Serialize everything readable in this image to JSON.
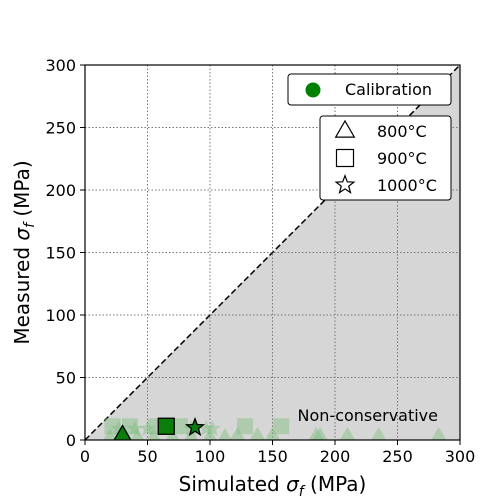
{
  "chart_data": {
    "type": "scatter",
    "xlabel": "Simulated",
    "ylabel": "Measured",
    "label_symbol": "σ",
    "label_subscript": "f",
    "label_unit": "(MPa)",
    "xlim": [
      0,
      300
    ],
    "ylim": [
      0,
      300
    ],
    "xticks": [
      0,
      50,
      100,
      150,
      200,
      250,
      300
    ],
    "yticks": [
      0,
      50,
      100,
      150,
      200,
      250,
      300
    ],
    "grid": true,
    "region_label": "Non-conservative",
    "region_color": "#d6d6d6",
    "diagonal": [
      [
        0,
        0
      ],
      [
        300,
        300
      ]
    ],
    "point_color": "#0a7d0a",
    "legend_calibration": {
      "label": "Calibration",
      "color": "#008000"
    },
    "legend_markers": [
      {
        "label": "800°C",
        "marker": "triangle"
      },
      {
        "label": "900°C",
        "marker": "square"
      },
      {
        "label": "1000°C",
        "marker": "star"
      }
    ],
    "series": [
      {
        "marker": "triangle",
        "faded": [
          [
            20,
            2
          ],
          [
            30,
            2
          ],
          [
            42,
            2
          ],
          [
            55,
            2
          ],
          [
            70,
            2
          ],
          [
            85,
            2
          ],
          [
            100,
            2
          ],
          [
            112,
            2
          ],
          [
            122,
            3
          ],
          [
            138,
            3
          ],
          [
            150,
            3
          ],
          [
            185,
            3
          ],
          [
            188,
            3
          ],
          [
            210,
            3
          ],
          [
            235,
            3
          ],
          [
            283,
            3
          ]
        ],
        "highlight": [
          [
            30,
            4
          ]
        ]
      },
      {
        "marker": "square",
        "faded": [
          [
            22,
            11
          ],
          [
            36,
            11
          ],
          [
            57,
            11
          ],
          [
            76,
            11
          ],
          [
            128,
            11
          ],
          [
            157,
            11
          ]
        ],
        "highlight": [
          [
            65,
            11
          ]
        ]
      },
      {
        "marker": "star",
        "faded": [
          [
            27,
            9
          ],
          [
            40,
            9
          ],
          [
            50,
            9
          ],
          [
            85,
            9
          ],
          [
            97,
            9
          ],
          [
            102,
            9
          ]
        ],
        "highlight": [
          [
            88,
            10
          ]
        ]
      }
    ]
  }
}
